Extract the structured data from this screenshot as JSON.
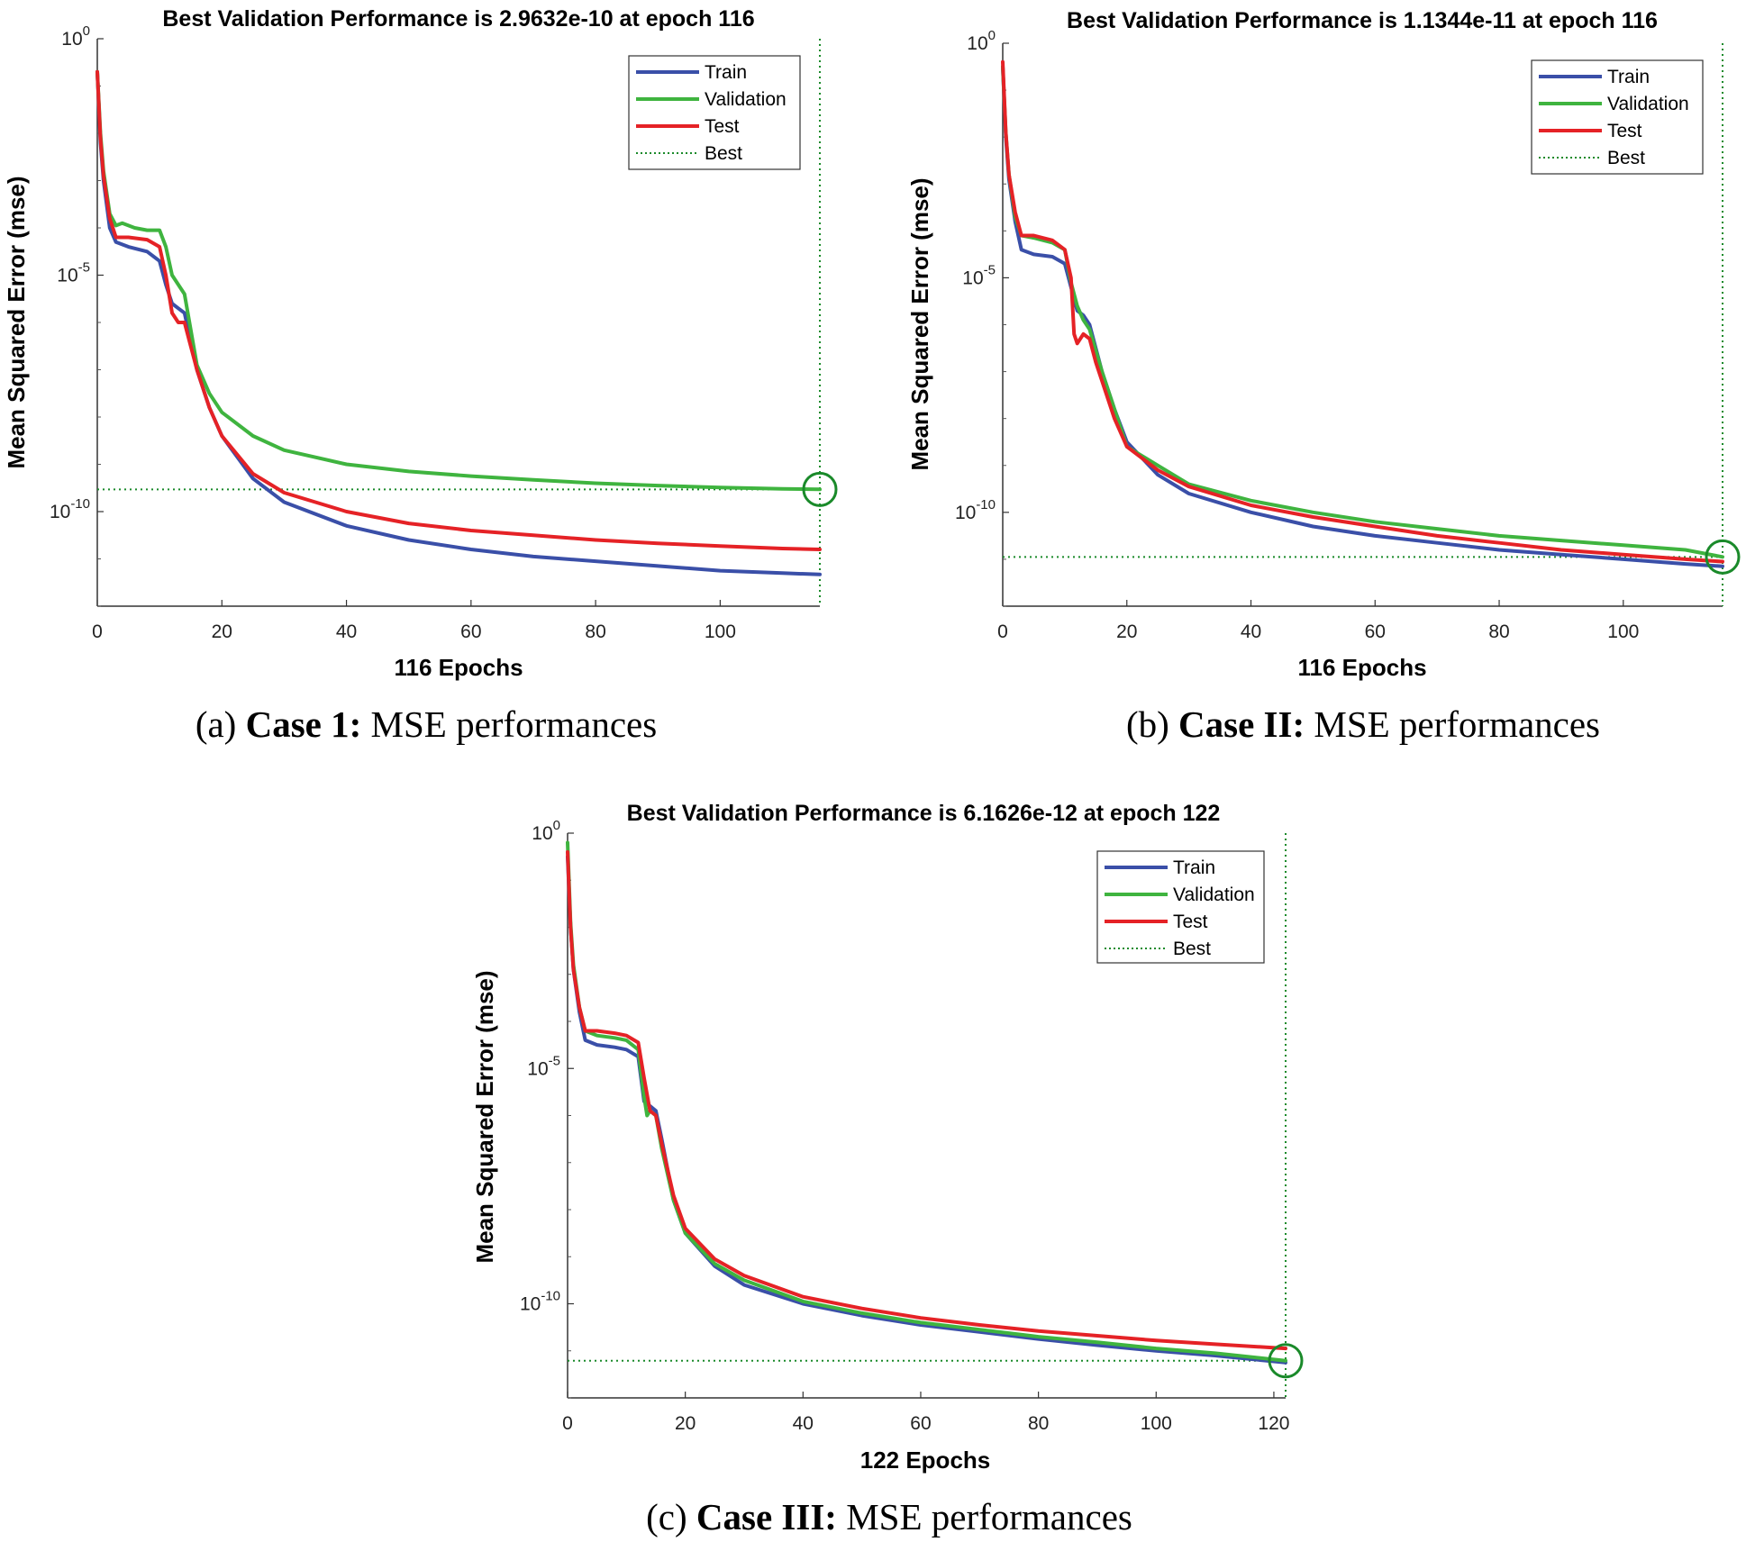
{
  "chart_data": [
    {
      "type": "line",
      "title": "Best Validation Performance is 2.9632e-10 at epoch 116",
      "xlabel": "116 Epochs",
      "ylabel": "Mean Squared Error  (mse)",
      "caption": {
        "prefix": "(a) ",
        "bold": "Case 1:",
        "rest": " MSE performances"
      },
      "xlim": [
        0,
        116
      ],
      "xticks": [
        0,
        20,
        40,
        60,
        80,
        100
      ],
      "ylim_log10": [
        -12,
        0
      ],
      "yticks": [
        {
          "base": "10",
          "exp": "0",
          "value": 0
        },
        {
          "base": "10",
          "exp": "-5",
          "value": -5
        },
        {
          "base": "10",
          "exp": "-10",
          "value": -10
        }
      ],
      "legend": {
        "position": "top-right",
        "entries": [
          "Train",
          "Validation",
          "Test",
          "Best"
        ]
      },
      "best": {
        "epoch": 116,
        "value": 2.9632e-10,
        "log10": -9.53
      },
      "colors": {
        "train": "#3a4fa8",
        "validation": "#3fb43f",
        "test": "#e52226",
        "best": "#1a8a2a"
      },
      "series": [
        {
          "name": "Train",
          "color": "#3a4fa8",
          "x": [
            0,
            0.5,
            1,
            2,
            3,
            5,
            8,
            10,
            11,
            12,
            13,
            14,
            16,
            18,
            20,
            25,
            30,
            40,
            50,
            60,
            70,
            80,
            90,
            100,
            110,
            116
          ],
          "log10": [
            -0.7,
            -2.2,
            -3.0,
            -4.0,
            -4.3,
            -4.4,
            -4.5,
            -4.7,
            -5.2,
            -5.6,
            -5.7,
            -5.8,
            -7.0,
            -7.8,
            -8.4,
            -9.3,
            -9.8,
            -10.3,
            -10.6,
            -10.8,
            -10.95,
            -11.05,
            -11.15,
            -11.25,
            -11.3,
            -11.33
          ]
        },
        {
          "name": "Validation",
          "color": "#3fb43f",
          "x": [
            0,
            0.5,
            1,
            2,
            3,
            4,
            6,
            8,
            10,
            11,
            12,
            13,
            14,
            16,
            18,
            20,
            25,
            30,
            40,
            50,
            60,
            70,
            80,
            90,
            100,
            110,
            116
          ],
          "log10": [
            -0.7,
            -2.0,
            -2.8,
            -3.7,
            -3.95,
            -3.9,
            -4.0,
            -4.05,
            -4.05,
            -4.4,
            -5.0,
            -5.2,
            -5.4,
            -6.9,
            -7.5,
            -7.9,
            -8.4,
            -8.7,
            -9.0,
            -9.15,
            -9.25,
            -9.33,
            -9.4,
            -9.45,
            -9.49,
            -9.52,
            -9.53
          ]
        },
        {
          "name": "Test",
          "color": "#e52226",
          "x": [
            0,
            0.5,
            1,
            2,
            3,
            5,
            8,
            10,
            11,
            12,
            13,
            14,
            15,
            16,
            18,
            20,
            25,
            30,
            40,
            50,
            60,
            70,
            80,
            90,
            100,
            110,
            116
          ],
          "log10": [
            -0.7,
            -2.1,
            -2.9,
            -3.8,
            -4.2,
            -4.2,
            -4.25,
            -4.4,
            -5.0,
            -5.8,
            -6.0,
            -6.0,
            -6.5,
            -7.0,
            -7.8,
            -8.4,
            -9.2,
            -9.6,
            -10.0,
            -10.25,
            -10.4,
            -10.5,
            -10.6,
            -10.67,
            -10.73,
            -10.78,
            -10.8
          ]
        }
      ]
    },
    {
      "type": "line",
      "title": "Best Validation Performance is 1.1344e-11 at epoch 116",
      "xlabel": "116 Epochs",
      "ylabel": "Mean Squared Error  (mse)",
      "caption": {
        "prefix": "(b) ",
        "bold": "Case II:",
        "rest": " MSE performances"
      },
      "xlim": [
        0,
        116
      ],
      "xticks": [
        0,
        20,
        40,
        60,
        80,
        100
      ],
      "ylim_log10": [
        -12,
        0
      ],
      "yticks": [
        {
          "base": "10",
          "exp": "0",
          "value": 0
        },
        {
          "base": "10",
          "exp": "-5",
          "value": -5
        },
        {
          "base": "10",
          "exp": "-10",
          "value": -10
        }
      ],
      "legend": {
        "position": "top-right",
        "entries": [
          "Train",
          "Validation",
          "Test",
          "Best"
        ]
      },
      "best": {
        "epoch": 116,
        "value": 1.1344e-11,
        "log10": -10.95
      },
      "colors": {
        "train": "#3a4fa8",
        "validation": "#3fb43f",
        "test": "#e52226",
        "best": "#1a8a2a"
      },
      "series": [
        {
          "name": "Train",
          "color": "#3a4fa8",
          "x": [
            0,
            0.5,
            1,
            2,
            3,
            5,
            8,
            10,
            11,
            12,
            13,
            14,
            16,
            18,
            20,
            25,
            30,
            40,
            50,
            60,
            70,
            80,
            90,
            100,
            110,
            116
          ],
          "log10": [
            -0.5,
            -2.0,
            -2.9,
            -3.8,
            -4.4,
            -4.5,
            -4.55,
            -4.7,
            -5.2,
            -5.7,
            -5.8,
            -6.0,
            -7.0,
            -7.8,
            -8.5,
            -9.2,
            -9.6,
            -10.0,
            -10.3,
            -10.5,
            -10.65,
            -10.8,
            -10.9,
            -11.0,
            -11.1,
            -11.15
          ]
        },
        {
          "name": "Validation",
          "color": "#3fb43f",
          "x": [
            0,
            0.5,
            1,
            2,
            3,
            5,
            8,
            10,
            11,
            12,
            13,
            14,
            16,
            18,
            20,
            25,
            30,
            40,
            50,
            60,
            70,
            80,
            90,
            100,
            110,
            116
          ],
          "log10": [
            -0.5,
            -1.9,
            -2.8,
            -3.7,
            -4.1,
            -4.15,
            -4.25,
            -4.4,
            -5.1,
            -5.6,
            -5.9,
            -6.1,
            -7.0,
            -7.8,
            -8.6,
            -9.0,
            -9.4,
            -9.75,
            -10.0,
            -10.2,
            -10.35,
            -10.5,
            -10.6,
            -10.7,
            -10.8,
            -10.95
          ]
        },
        {
          "name": "Test",
          "color": "#e52226",
          "x": [
            0,
            0.5,
            1,
            2,
            3,
            5,
            8,
            10,
            11,
            11.5,
            12,
            13,
            14,
            15,
            16,
            18,
            20,
            25,
            30,
            40,
            50,
            60,
            70,
            80,
            90,
            100,
            110,
            116
          ],
          "log10": [
            -0.4,
            -1.9,
            -2.8,
            -3.6,
            -4.1,
            -4.1,
            -4.2,
            -4.4,
            -5.0,
            -6.2,
            -6.4,
            -6.2,
            -6.3,
            -6.8,
            -7.2,
            -8.0,
            -8.6,
            -9.1,
            -9.45,
            -9.85,
            -10.1,
            -10.3,
            -10.5,
            -10.65,
            -10.8,
            -10.9,
            -11.0,
            -11.05
          ]
        }
      ]
    },
    {
      "type": "line",
      "title": "Best Validation Performance is 6.1626e-12 at epoch 122",
      "xlabel": "122 Epochs",
      "ylabel": "Mean Squared Error  (mse)",
      "caption": {
        "prefix": "(c) ",
        "bold": "Case III:",
        "rest": " MSE performances"
      },
      "xlim": [
        0,
        122
      ],
      "xticks": [
        0,
        20,
        40,
        60,
        80,
        100,
        120
      ],
      "ylim_log10": [
        -12,
        0
      ],
      "yticks": [
        {
          "base": "10",
          "exp": "0",
          "value": 0
        },
        {
          "base": "10",
          "exp": "-5",
          "value": -5
        },
        {
          "base": "10",
          "exp": "-10",
          "value": -10
        }
      ],
      "legend": {
        "position": "top-right",
        "entries": [
          "Train",
          "Validation",
          "Test",
          "Best"
        ]
      },
      "best": {
        "epoch": 122,
        "value": 6.1626e-12,
        "log10": -11.21
      },
      "colors": {
        "train": "#3a4fa8",
        "validation": "#3fb43f",
        "test": "#e52226",
        "best": "#1a8a2a"
      },
      "series": [
        {
          "name": "Train",
          "color": "#3a4fa8",
          "x": [
            0,
            0.5,
            1,
            2,
            3,
            5,
            8,
            10,
            12,
            13,
            14,
            15,
            16,
            18,
            20,
            25,
            30,
            40,
            50,
            60,
            70,
            80,
            90,
            100,
            110,
            122
          ],
          "log10": [
            -0.5,
            -2.0,
            -2.9,
            -3.8,
            -4.4,
            -4.5,
            -4.55,
            -4.6,
            -4.75,
            -5.7,
            -5.8,
            -5.9,
            -6.5,
            -7.8,
            -8.5,
            -9.2,
            -9.6,
            -10.0,
            -10.25,
            -10.45,
            -10.6,
            -10.75,
            -10.88,
            -11.0,
            -11.1,
            -11.25
          ]
        },
        {
          "name": "Validation",
          "color": "#3fb43f",
          "x": [
            0,
            0.5,
            1,
            2,
            3,
            5,
            8,
            10,
            12,
            13,
            13.5,
            14,
            15,
            16,
            18,
            20,
            25,
            30,
            40,
            50,
            60,
            70,
            80,
            90,
            100,
            110,
            122
          ],
          "log10": [
            -0.2,
            -1.9,
            -2.8,
            -3.7,
            -4.2,
            -4.3,
            -4.35,
            -4.4,
            -4.6,
            -5.6,
            -6.0,
            -5.9,
            -6.0,
            -6.7,
            -7.8,
            -8.5,
            -9.15,
            -9.5,
            -9.95,
            -10.2,
            -10.4,
            -10.55,
            -10.7,
            -10.82,
            -10.95,
            -11.05,
            -11.21
          ]
        },
        {
          "name": "Test",
          "color": "#e52226",
          "x": [
            0,
            0.5,
            1,
            2,
            3,
            5,
            8,
            10,
            12,
            13,
            14,
            15,
            16,
            18,
            20,
            25,
            30,
            40,
            50,
            60,
            70,
            80,
            90,
            100,
            110,
            122
          ],
          "log10": [
            -0.4,
            -2.0,
            -2.9,
            -3.7,
            -4.2,
            -4.2,
            -4.25,
            -4.3,
            -4.45,
            -5.2,
            -5.9,
            -6.0,
            -6.6,
            -7.7,
            -8.4,
            -9.05,
            -9.4,
            -9.85,
            -10.1,
            -10.3,
            -10.45,
            -10.58,
            -10.68,
            -10.78,
            -10.86,
            -10.95
          ]
        }
      ]
    }
  ]
}
